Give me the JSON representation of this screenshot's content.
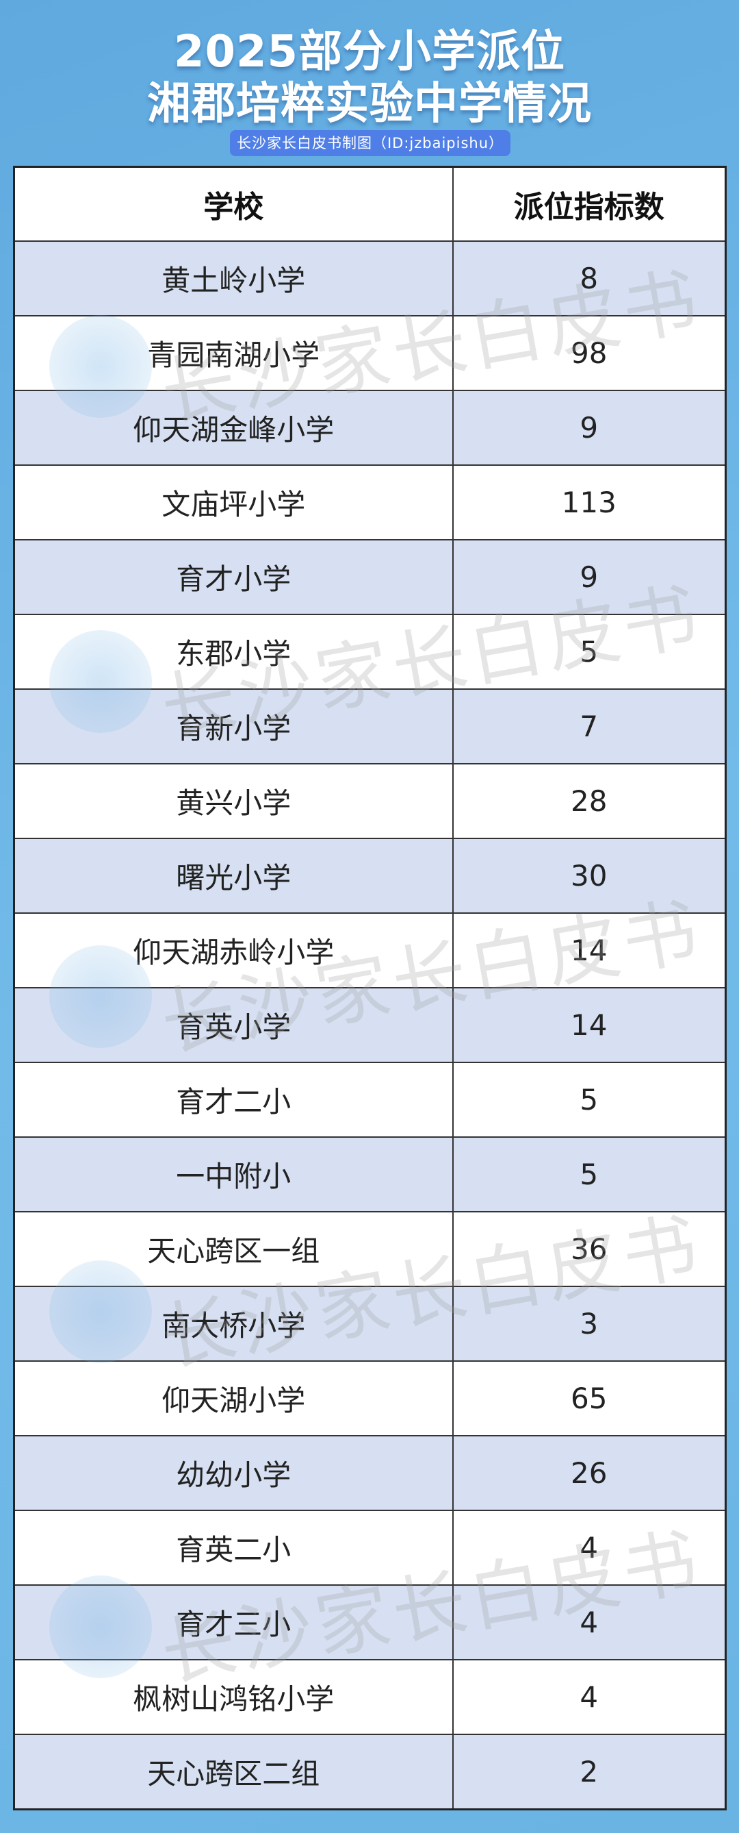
{
  "title_line1": "2025部分小学派位",
  "title_line2": "湘郡培粹实验中学情况",
  "credit": "长沙家长白皮书制图（ID:jzbaipishu）",
  "watermark": "长沙家长白皮书",
  "table": {
    "headers": [
      "学校",
      "派位指标数"
    ],
    "rows": [
      {
        "school": "黄土岭小学",
        "quota": "8"
      },
      {
        "school": "青园南湖小学",
        "quota": "98"
      },
      {
        "school": "仰天湖金峰小学",
        "quota": "9"
      },
      {
        "school": "文庙坪小学",
        "quota": "113"
      },
      {
        "school": "育才小学",
        "quota": "9"
      },
      {
        "school": "东郡小学",
        "quota": "5"
      },
      {
        "school": "育新小学",
        "quota": "7"
      },
      {
        "school": "黄兴小学",
        "quota": "28"
      },
      {
        "school": "曙光小学",
        "quota": "30"
      },
      {
        "school": "仰天湖赤岭小学",
        "quota": "14"
      },
      {
        "school": "育英小学",
        "quota": "14"
      },
      {
        "school": "育才二小",
        "quota": "5"
      },
      {
        "school": "一中附小",
        "quota": "5"
      },
      {
        "school": "天心跨区一组",
        "quota": "36"
      },
      {
        "school": "南大桥小学",
        "quota": "3"
      },
      {
        "school": "仰天湖小学",
        "quota": "65"
      },
      {
        "school": "幼幼小学",
        "quota": "26"
      },
      {
        "school": "育英二小",
        "quota": "4"
      },
      {
        "school": "育才三小",
        "quota": "4"
      },
      {
        "school": "枫树山鸿铭小学",
        "quota": "4"
      },
      {
        "school": "天心跨区二组",
        "quota": "2"
      }
    ]
  },
  "colors": {
    "background": "#6bb4e4",
    "badge": "#4f7fe6",
    "row_alt": "#d6e0f2"
  }
}
